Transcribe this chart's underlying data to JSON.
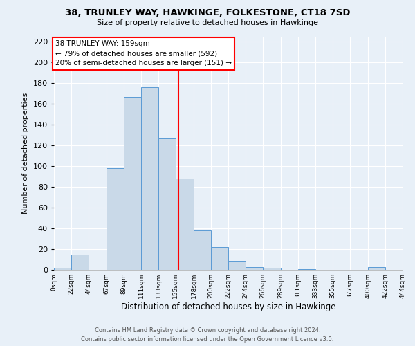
{
  "title": "38, TRUNLEY WAY, HAWKINGE, FOLKESTONE, CT18 7SD",
  "subtitle": "Size of property relative to detached houses in Hawkinge",
  "xlabel": "Distribution of detached houses by size in Hawkinge",
  "ylabel": "Number of detached properties",
  "bar_color": "#c9d9e8",
  "bar_edge_color": "#5b9bd5",
  "background_color": "#e8f0f8",
  "vline_x": 159,
  "vline_color": "red",
  "annotation_line1": "38 TRUNLEY WAY: 159sqm",
  "annotation_line2": "← 79% of detached houses are smaller (592)",
  "annotation_line3": "20% of semi-detached houses are larger (151) →",
  "annotation_box_color": "red",
  "footer_line1": "Contains HM Land Registry data © Crown copyright and database right 2024.",
  "footer_line2": "Contains public sector information licensed under the Open Government Licence v3.0.",
  "bin_edges": [
    0,
    22,
    44,
    67,
    89,
    111,
    133,
    155,
    178,
    200,
    222,
    244,
    266,
    289,
    311,
    333,
    355,
    377,
    400,
    422,
    444
  ],
  "bin_labels": [
    "0sqm",
    "22sqm",
    "44sqm",
    "67sqm",
    "89sqm",
    "111sqm",
    "133sqm",
    "155sqm",
    "178sqm",
    "200sqm",
    "222sqm",
    "244sqm",
    "266sqm",
    "289sqm",
    "311sqm",
    "333sqm",
    "355sqm",
    "377sqm",
    "400sqm",
    "422sqm",
    "444sqm"
  ],
  "bar_heights": [
    2,
    15,
    0,
    98,
    167,
    176,
    127,
    88,
    38,
    22,
    9,
    3,
    2,
    0,
    1,
    0,
    0,
    0,
    3,
    0
  ],
  "ylim": [
    0,
    225
  ],
  "yticks": [
    0,
    20,
    40,
    60,
    80,
    100,
    120,
    140,
    160,
    180,
    200,
    220
  ],
  "figsize": [
    6.0,
    5.0
  ],
  "dpi": 100
}
